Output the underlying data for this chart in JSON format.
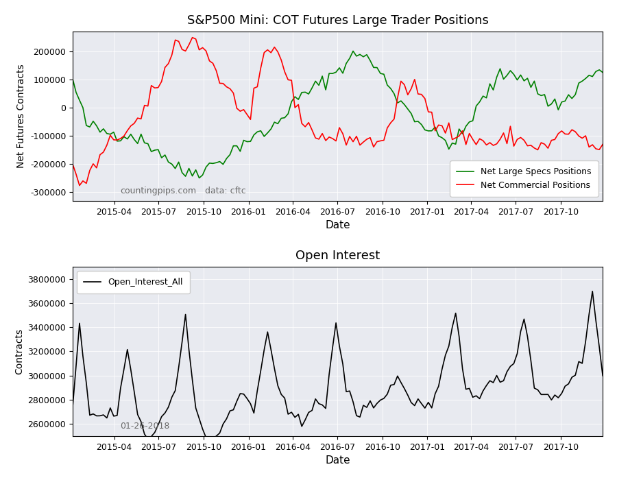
{
  "title1": "S&P500 Mini: COT Futures Large Trader Positions",
  "title2": "Open Interest",
  "ylabel1": "Net Futures Contracts",
  "ylabel2": "Contracts",
  "xlabel": "Date",
  "annotation1": "countingpips.com",
  "annotation2": "data: cftc",
  "annotation3": "01-26-2018",
  "legend1a": "Net Large Specs Positions",
  "legend1b": "Net Commercial Positions",
  "legend2": "Open_Interest_All",
  "bg_color": "#e8eaf0",
  "line_green": "#008000",
  "line_red": "#ff0000",
  "line_black": "#000000",
  "fig_bg": "#ffffff"
}
